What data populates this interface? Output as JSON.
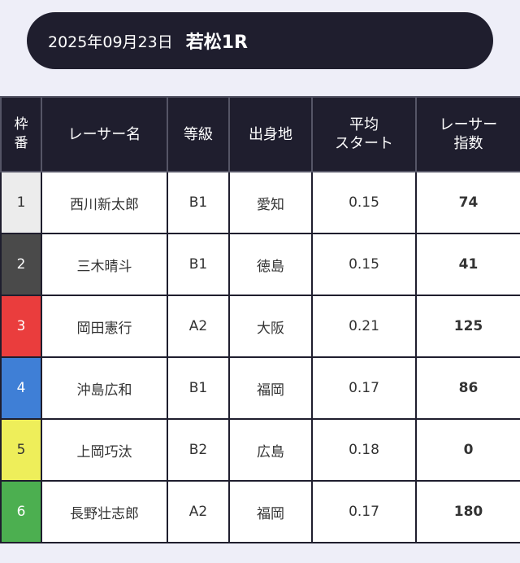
{
  "header": {
    "date": "2025年09月23日",
    "race": "若松1R"
  },
  "table": {
    "headers": {
      "waku": "枠\n番",
      "name": "レーサー名",
      "class": "等級",
      "origin": "出身地",
      "avg_start": "平均\nスタート",
      "index": "レーサー\n指数"
    },
    "rows": [
      {
        "waku": "1",
        "name": "西川新太郎",
        "class": "B1",
        "origin": "愛知",
        "avg_start": "0.15",
        "index": "74"
      },
      {
        "waku": "2",
        "name": "三木晴斗",
        "class": "B1",
        "origin": "徳島",
        "avg_start": "0.15",
        "index": "41"
      },
      {
        "waku": "3",
        "name": "岡田憲行",
        "class": "A2",
        "origin": "大阪",
        "avg_start": "0.21",
        "index": "125"
      },
      {
        "waku": "4",
        "name": "沖島広和",
        "class": "B1",
        "origin": "福岡",
        "avg_start": "0.17",
        "index": "86"
      },
      {
        "waku": "5",
        "name": "上岡巧汰",
        "class": "B2",
        "origin": "広島",
        "avg_start": "0.18",
        "index": "0"
      },
      {
        "waku": "6",
        "name": "長野壮志郎",
        "class": "A2",
        "origin": "福岡",
        "avg_start": "0.17",
        "index": "180"
      }
    ]
  },
  "waku_colors": [
    {
      "bg": "#ececec",
      "fg": "#333333"
    },
    {
      "bg": "#4a4a4a",
      "fg": "#ffffff"
    },
    {
      "bg": "#ea3d3d",
      "fg": "#ffffff"
    },
    {
      "bg": "#3f7fd6",
      "fg": "#ffffff"
    },
    {
      "bg": "#eeee5a",
      "fg": "#333333"
    },
    {
      "bg": "#4caf50",
      "fg": "#ffffff"
    }
  ]
}
